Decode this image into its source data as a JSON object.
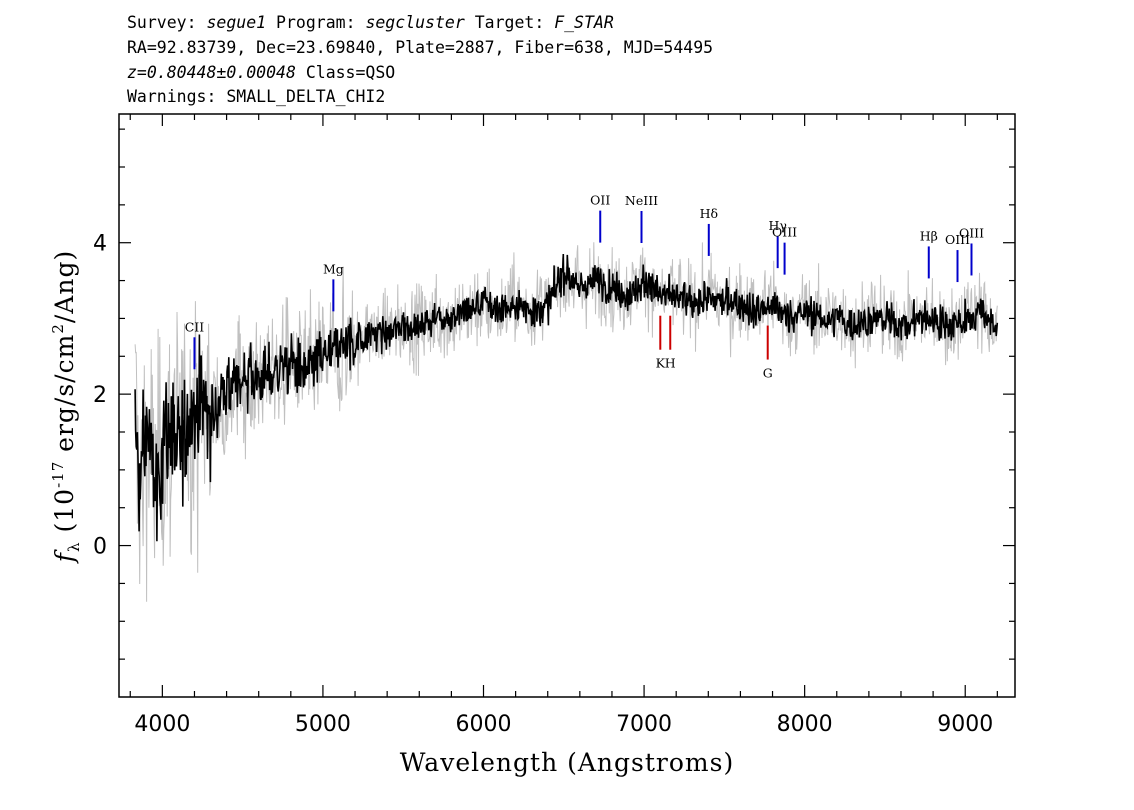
{
  "header": {
    "line1": {
      "survey_label": "Survey: ",
      "survey": "segue1",
      "program_label": " Program: ",
      "program": "segcluster",
      "target_label": " Target: ",
      "target": "F_STAR"
    },
    "line2": "RA=92.83739, Dec=23.69840, Plate=2887, Fiber=638, MJD=54495",
    "line3": {
      "z": "z=0.80448±0.00048",
      "class": " Class=QSO"
    },
    "line4": "Warnings: SMALL_DELTA_CHI2"
  },
  "chart_data": {
    "type": "line",
    "xlabel": "Wavelength (Angstroms)",
    "ylabel_prefix": "f",
    "ylabel_sub": "λ",
    "ylabel_rest": " (10",
    "ylabel_exp": "-17",
    "ylabel_units": " erg/s/cm",
    "ylabel_exp2": "2",
    "ylabel_end": "/Ang)",
    "xlim": [
      3730,
      9310
    ],
    "ylim": [
      -2.0,
      5.7
    ],
    "x_ticks": [
      "4000",
      "5000",
      "6000",
      "7000",
      "8000",
      "9000"
    ],
    "y_ticks": [
      "0",
      "2",
      "4"
    ],
    "colors": {
      "spectrum": "#000000",
      "error": "#c0c0c0",
      "emission": "#0000cc",
      "absorption": "#cc0000"
    },
    "series": [
      {
        "x": [
          3830,
          3860,
          3880,
          3900,
          3930,
          3960,
          4000,
          4050,
          4100,
          4150,
          4200,
          4250,
          4300,
          4400,
          4500,
          4600,
          4700,
          4800,
          4900,
          5000,
          5100,
          5200,
          5300,
          5400,
          5500,
          5600,
          5700,
          5800,
          5900,
          6000,
          6100,
          6200,
          6300,
          6400,
          6500,
          6550,
          6600,
          6700,
          6800,
          6900,
          7000,
          7100,
          7200,
          7300,
          7400,
          7500,
          7600,
          7700,
          7800,
          7900,
          8000,
          8100,
          8200,
          8300,
          8400,
          8500,
          8600,
          8700,
          8800,
          8900,
          9000,
          9100,
          9150,
          9200
        ],
        "y": [
          1.8,
          0.6,
          1.2,
          1.5,
          1.2,
          0.8,
          1.2,
          1.5,
          1.3,
          1.6,
          1.8,
          1.9,
          1.7,
          2.0,
          2.2,
          2.2,
          2.3,
          2.4,
          2.3,
          2.5,
          2.6,
          2.7,
          2.8,
          2.8,
          2.9,
          2.9,
          3.0,
          3.0,
          3.1,
          3.2,
          3.1,
          3.2,
          3.1,
          3.2,
          3.6,
          3.5,
          3.4,
          3.5,
          3.4,
          3.3,
          3.5,
          3.3,
          3.3,
          3.2,
          3.3,
          3.2,
          3.2,
          3.1,
          3.2,
          3.0,
          3.1,
          3.0,
          3.0,
          2.9,
          3.0,
          3.0,
          2.9,
          3.0,
          3.0,
          2.9,
          3.0,
          3.1,
          3.0,
          2.8
        ]
      }
    ],
    "lines": [
      {
        "label": "CII",
        "x": 4200,
        "type": "emission"
      },
      {
        "label": "Mg",
        "x": 5065,
        "type": "emission"
      },
      {
        "label": "OII",
        "x": 6727,
        "type": "emission"
      },
      {
        "label": "NeIII",
        "x": 6984,
        "type": "emission"
      },
      {
        "label": "Hδ",
        "x": 7403,
        "type": "emission"
      },
      {
        "label": "Hγ",
        "x": 7832,
        "type": "emission"
      },
      {
        "label": "OIII",
        "x": 7875,
        "type": "emission"
      },
      {
        "label": "Hβ",
        "x": 8773,
        "type": "emission"
      },
      {
        "label": "OIII",
        "x": 8952,
        "type": "emission"
      },
      {
        "label": "OIII",
        "x": 9039,
        "type": "emission"
      },
      {
        "label": "K",
        "x": 7101,
        "type": "absorption"
      },
      {
        "label": "H",
        "x": 7163,
        "type": "absorption"
      },
      {
        "label": "G",
        "x": 7770,
        "type": "absorption"
      }
    ]
  }
}
